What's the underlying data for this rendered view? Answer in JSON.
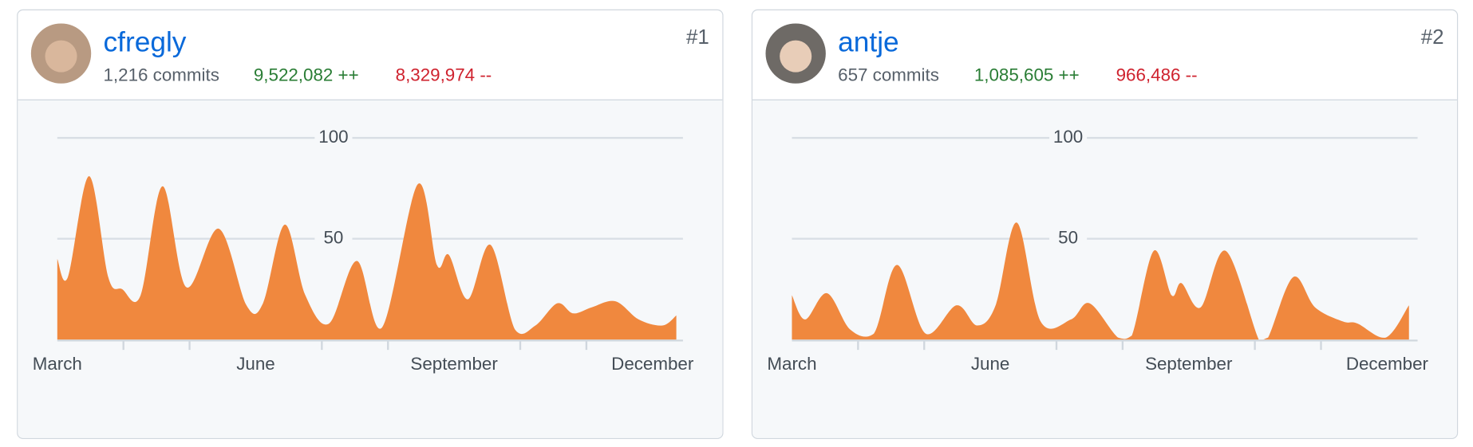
{
  "cards": [
    {
      "user": "cfregly",
      "rank": "#1",
      "commits": "1,216 commits",
      "additions": "9,522,082 ++",
      "deletions": "8,329,974 --"
    },
    {
      "user": "antje",
      "rank": "#2",
      "commits": "657 commits",
      "additions": "1,085,605 ++",
      "deletions": "966,486 --"
    }
  ],
  "chart_data": [
    {
      "type": "area",
      "color": "#f0883e",
      "grid": true,
      "x": [
        0,
        0.16,
        0.48,
        0.77,
        0.98,
        1.26,
        1.59,
        1.95,
        2.44,
        2.86,
        3.11,
        3.44,
        3.75,
        4.11,
        4.53,
        4.91,
        5.45,
        5.74,
        5.92,
        6.21,
        6.55,
        6.92,
        7.23,
        7.56,
        7.8,
        8.08,
        8.44,
        8.79,
        9.15,
        9.36
      ],
      "values": [
        40,
        31,
        81,
        31,
        25,
        22,
        76,
        26,
        55,
        17,
        18,
        57,
        22,
        8,
        39,
        6,
        77,
        37,
        42,
        20,
        47,
        5,
        7,
        18,
        13,
        16,
        19,
        10,
        7,
        12
      ],
      "xlim": [
        0,
        9.36
      ],
      "xticks": [
        0,
        1,
        2,
        3,
        4,
        5,
        6,
        7,
        8,
        9
      ],
      "xlabels": [
        {
          "value": 0,
          "label": "March"
        },
        {
          "value": 3,
          "label": "June"
        },
        {
          "value": 6,
          "label": "September"
        },
        {
          "value": 9,
          "label": "December"
        }
      ],
      "ylim": [
        0,
        100
      ],
      "yticks": [
        50,
        100
      ]
    },
    {
      "type": "area",
      "color": "#f0883e",
      "grid": true,
      "x": [
        0,
        0.2,
        0.53,
        0.88,
        1.24,
        1.59,
        2.02,
        2.49,
        2.8,
        3.08,
        3.4,
        3.76,
        4.22,
        4.5,
        4.93,
        5.14,
        5.47,
        5.74,
        5.89,
        6.18,
        6.56,
        7.06,
        7.2,
        7.58,
        7.91,
        8.33,
        8.55,
        8.98,
        9.33
      ],
      "values": [
        22,
        10,
        23,
        5,
        3,
        37,
        3,
        17,
        7,
        17,
        58,
        9,
        10,
        18,
        1,
        2,
        44,
        22,
        28,
        16,
        44,
        0,
        1,
        31,
        16,
        9,
        8,
        1,
        17
      ],
      "xlim": [
        0,
        9.36
      ],
      "xticks": [
        0,
        1,
        2,
        3,
        4,
        5,
        6,
        7,
        8,
        9
      ],
      "xlabels": [
        {
          "value": 0,
          "label": "March"
        },
        {
          "value": 3,
          "label": "June"
        },
        {
          "value": 6,
          "label": "September"
        },
        {
          "value": 9,
          "label": "December"
        }
      ],
      "ylim": [
        0,
        100
      ],
      "yticks": [
        50,
        100
      ]
    }
  ]
}
